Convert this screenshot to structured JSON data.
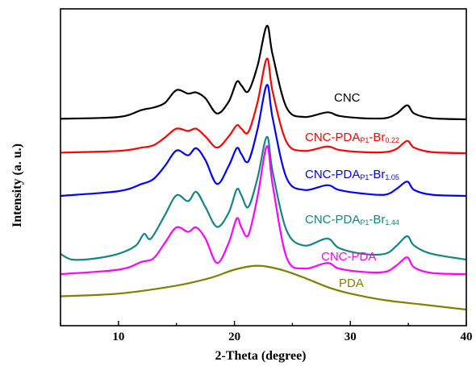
{
  "chart_data": {
    "type": "line",
    "xlabel": "2-Theta (degree)",
    "ylabel": "Intensity (a. u.)",
    "xlim": [
      5,
      40
    ],
    "xticks": [
      10,
      20,
      30,
      40
    ],
    "y_ticks_shown": false,
    "grid": false,
    "legend": "inline labels to the right of each curve",
    "series": [
      {
        "name": "CNC",
        "label_parts": {
          "main": "CNC",
          "sub": "",
          "tail": ""
        },
        "color": "#000000",
        "x": [
          5,
          10,
          12,
          13,
          14,
          15,
          16,
          16.7,
          17.5,
          18.5,
          19.5,
          20.2,
          20.6,
          21.2,
          22,
          22.8,
          23.3,
          24.5,
          26,
          28,
          29,
          31,
          33,
          34,
          34.9,
          35.5,
          37,
          40
        ],
        "y": [
          0.005,
          0.02,
          0.08,
          0.1,
          0.14,
          0.25,
          0.22,
          0.23,
          0.18,
          0.05,
          0.15,
          0.32,
          0.29,
          0.24,
          0.46,
          0.8,
          0.55,
          0.1,
          0.02,
          0.06,
          0.03,
          0.01,
          0.01,
          0.05,
          0.12,
          0.05,
          0.01,
          0.0
        ]
      },
      {
        "name": "CNC-PDA-P1-Br0.22",
        "label_parts": {
          "main": "CNC-PDA",
          "sub": "P1",
          "tail": "-Br",
          "tail_sub": "0.22"
        },
        "color": "#ff0000",
        "x": [
          5,
          10,
          12,
          13,
          14,
          15,
          16,
          16.7,
          17.5,
          18.5,
          19.5,
          20.2,
          20.6,
          21.2,
          22,
          22.8,
          23.3,
          24.5,
          26,
          28,
          29,
          31,
          33,
          34,
          34.9,
          35.5,
          37,
          40
        ],
        "y": [
          0.005,
          0.02,
          0.05,
          0.07,
          0.14,
          0.22,
          0.2,
          0.22,
          0.15,
          0.05,
          0.15,
          0.25,
          0.22,
          0.19,
          0.46,
          0.85,
          0.55,
          0.1,
          0.02,
          0.06,
          0.03,
          0.01,
          0.01,
          0.04,
          0.11,
          0.05,
          0.01,
          0.0
        ]
      },
      {
        "name": "CNC-PDA-P1-Br1.05",
        "label_parts": {
          "main": "CNC-PDA",
          "sub": "P1",
          "tail": "-Br",
          "tail_sub": "1.05"
        },
        "color": "#0000ff",
        "x": [
          5,
          10,
          12,
          13,
          14,
          15,
          16,
          16.7,
          17.5,
          18.5,
          19.5,
          20.2,
          20.6,
          21.2,
          22,
          22.8,
          23.3,
          24.5,
          26,
          28,
          29,
          31,
          33,
          34,
          34.9,
          35.5,
          37,
          40
        ],
        "y": [
          0.0,
          0.04,
          0.1,
          0.14,
          0.25,
          0.38,
          0.34,
          0.4,
          0.3,
          0.1,
          0.25,
          0.4,
          0.35,
          0.29,
          0.56,
          0.93,
          0.65,
          0.15,
          0.05,
          0.09,
          0.05,
          0.02,
          0.01,
          0.06,
          0.12,
          0.05,
          0.01,
          0.0
        ]
      },
      {
        "name": "CNC-PDA-P1-Br1.44",
        "label_parts": {
          "main": "CNC-PDA",
          "sub": "P1",
          "tail": "-Br",
          "tail_sub": "1.44"
        },
        "color": "#138583",
        "x": [
          5,
          6,
          8,
          10,
          11.5,
          12.2,
          12.8,
          14,
          15,
          16,
          16.7,
          17.5,
          18.5,
          19.5,
          20.2,
          20.6,
          21.2,
          22,
          22.8,
          23.3,
          24.5,
          26,
          28,
          29,
          31,
          33,
          34,
          34.9,
          35.5,
          37,
          40
        ],
        "y": [
          0.05,
          0.0,
          0.01,
          0.05,
          0.12,
          0.22,
          0.18,
          0.38,
          0.55,
          0.5,
          0.58,
          0.45,
          0.28,
          0.4,
          0.6,
          0.55,
          0.45,
          0.7,
          1.05,
          0.75,
          0.25,
          0.12,
          0.18,
          0.1,
          0.05,
          0.05,
          0.12,
          0.2,
          0.12,
          0.05,
          0.0
        ]
      },
      {
        "name": "CNC-PDA",
        "label_parts": {
          "main": "CNC-PDA",
          "sub": "",
          "tail": ""
        },
        "color": "#ff00ff",
        "x": [
          5,
          10,
          12,
          13,
          14,
          15,
          16,
          16.7,
          17.5,
          18.5,
          19.5,
          20.2,
          20.6,
          21.2,
          22,
          22.8,
          23.3,
          24.5,
          26,
          28,
          29,
          31,
          33,
          34,
          34.9,
          35.5,
          37,
          40
        ],
        "y": [
          0.0,
          0.04,
          0.11,
          0.14,
          0.28,
          0.42,
          0.38,
          0.42,
          0.32,
          0.1,
          0.28,
          0.5,
          0.42,
          0.35,
          0.7,
          1.15,
          0.8,
          0.15,
          0.05,
          0.1,
          0.05,
          0.02,
          0.02,
          0.08,
          0.15,
          0.06,
          0.01,
          0.0
        ]
      },
      {
        "name": "PDA",
        "label_parts": {
          "main": "PDA",
          "sub": "",
          "tail": ""
        },
        "color": "#808000",
        "x": [
          5,
          10,
          15,
          18,
          20,
          22,
          24,
          26,
          28,
          30,
          33,
          36,
          40
        ],
        "y": [
          0.1,
          0.12,
          0.18,
          0.24,
          0.3,
          0.33,
          0.3,
          0.24,
          0.17,
          0.12,
          0.07,
          0.04,
          0.0
        ]
      }
    ]
  }
}
